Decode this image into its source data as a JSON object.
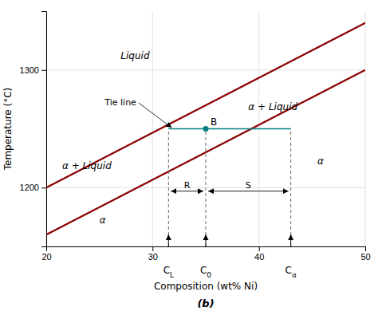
{
  "chart_data": {
    "type": "line",
    "title": "(b)",
    "x_label": "Composition (wt% Ni)",
    "y_label": "Temperature (°C)",
    "xlim": [
      20,
      50
    ],
    "ylim": [
      1150,
      1350
    ],
    "xticks": [
      20,
      30,
      40,
      50
    ],
    "yticks": [
      1200,
      1300
    ],
    "grid": true,
    "series": [
      {
        "color": "#8B0000",
        "x": [
          20,
          50
        ],
        "values": [
          1200,
          1340
        ]
      },
      {
        "color": "#8B0000",
        "x": [
          20,
          50
        ],
        "values": [
          1160,
          1300
        ]
      }
    ],
    "tie_line": {
      "y": 1250,
      "x": [
        31.5,
        43.0
      ],
      "color": "#008080"
    },
    "point": {
      "label": "B",
      "x": 35.0,
      "y": 1250,
      "color": "#008080"
    },
    "compositions": [
      {
        "label": "C",
        "subscript": "L",
        "x": 31.5
      },
      {
        "label": "C",
        "subscript": "0",
        "x": 35.0
      },
      {
        "label": "C",
        "subscript": "α",
        "x": 43.0
      }
    ],
    "lever": {
      "y": 1197,
      "spans": [
        {
          "label": "R",
          "x": [
            31.5,
            35.0
          ]
        },
        {
          "label": "S",
          "x": [
            35.0,
            43.0
          ]
        }
      ]
    },
    "annotations": [
      {
        "text": "Liquid",
        "x": 27,
        "y": 1312
      },
      {
        "text": "α + Liquid",
        "x": 39,
        "y": 1268
      },
      {
        "text": "α + Liquid",
        "x": 21.5,
        "y": 1218
      },
      {
        "text": "α",
        "x": 45.5,
        "y": 1222
      },
      {
        "text": "α",
        "x": 25,
        "y": 1172
      },
      {
        "text": "Tie line",
        "x": 25.5,
        "y": 1272,
        "arrow_to": [
          31.8,
          1251
        ]
      }
    ]
  }
}
